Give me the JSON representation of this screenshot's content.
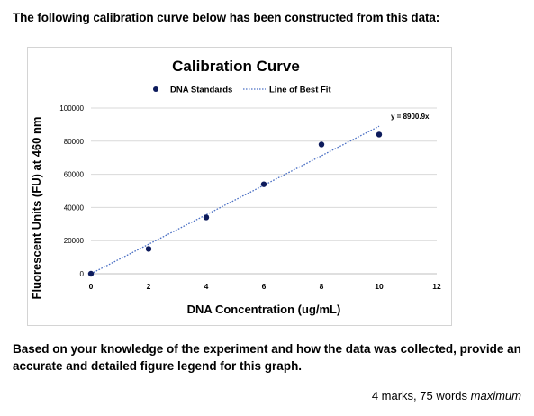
{
  "intro_text": "The following calibration curve below has been constructed from this data:",
  "question_text": "Based on your knowledge of the experiment and how the data was collected, provide an accurate and detailed figure legend for this graph.",
  "marks_text": "4 marks, 75 words ",
  "marks_emphasis": "maximum",
  "chart_data": {
    "type": "scatter",
    "title": "Calibration Curve",
    "xlabel": "DNA Concentration (ug/mL)",
    "ylabel": "Fluorescent Units (FU) at 460 nm",
    "xlim": [
      0,
      12
    ],
    "ylim": [
      0,
      100000
    ],
    "x_ticks": [
      "0",
      "2",
      "4",
      "6",
      "8",
      "10",
      "12"
    ],
    "y_ticks": [
      "0",
      "20000",
      "40000",
      "60000",
      "80000",
      "100000"
    ],
    "series": [
      {
        "name": "DNA Standards",
        "x": [
          0,
          2,
          4,
          6,
          8,
          10
        ],
        "y": [
          0,
          15000,
          34000,
          54000,
          78000,
          84000
        ]
      }
    ],
    "fit": {
      "name": "Line of Best Fit",
      "slope": 8900.9,
      "x_range": [
        0,
        10
      ],
      "equation_label": "y = 8900.9x"
    },
    "grid": true,
    "legend_position": "top",
    "colors": {
      "points": "#0d1b5c",
      "fit_line": "#4a6fc4",
      "grid": "#d9d9d9"
    }
  }
}
